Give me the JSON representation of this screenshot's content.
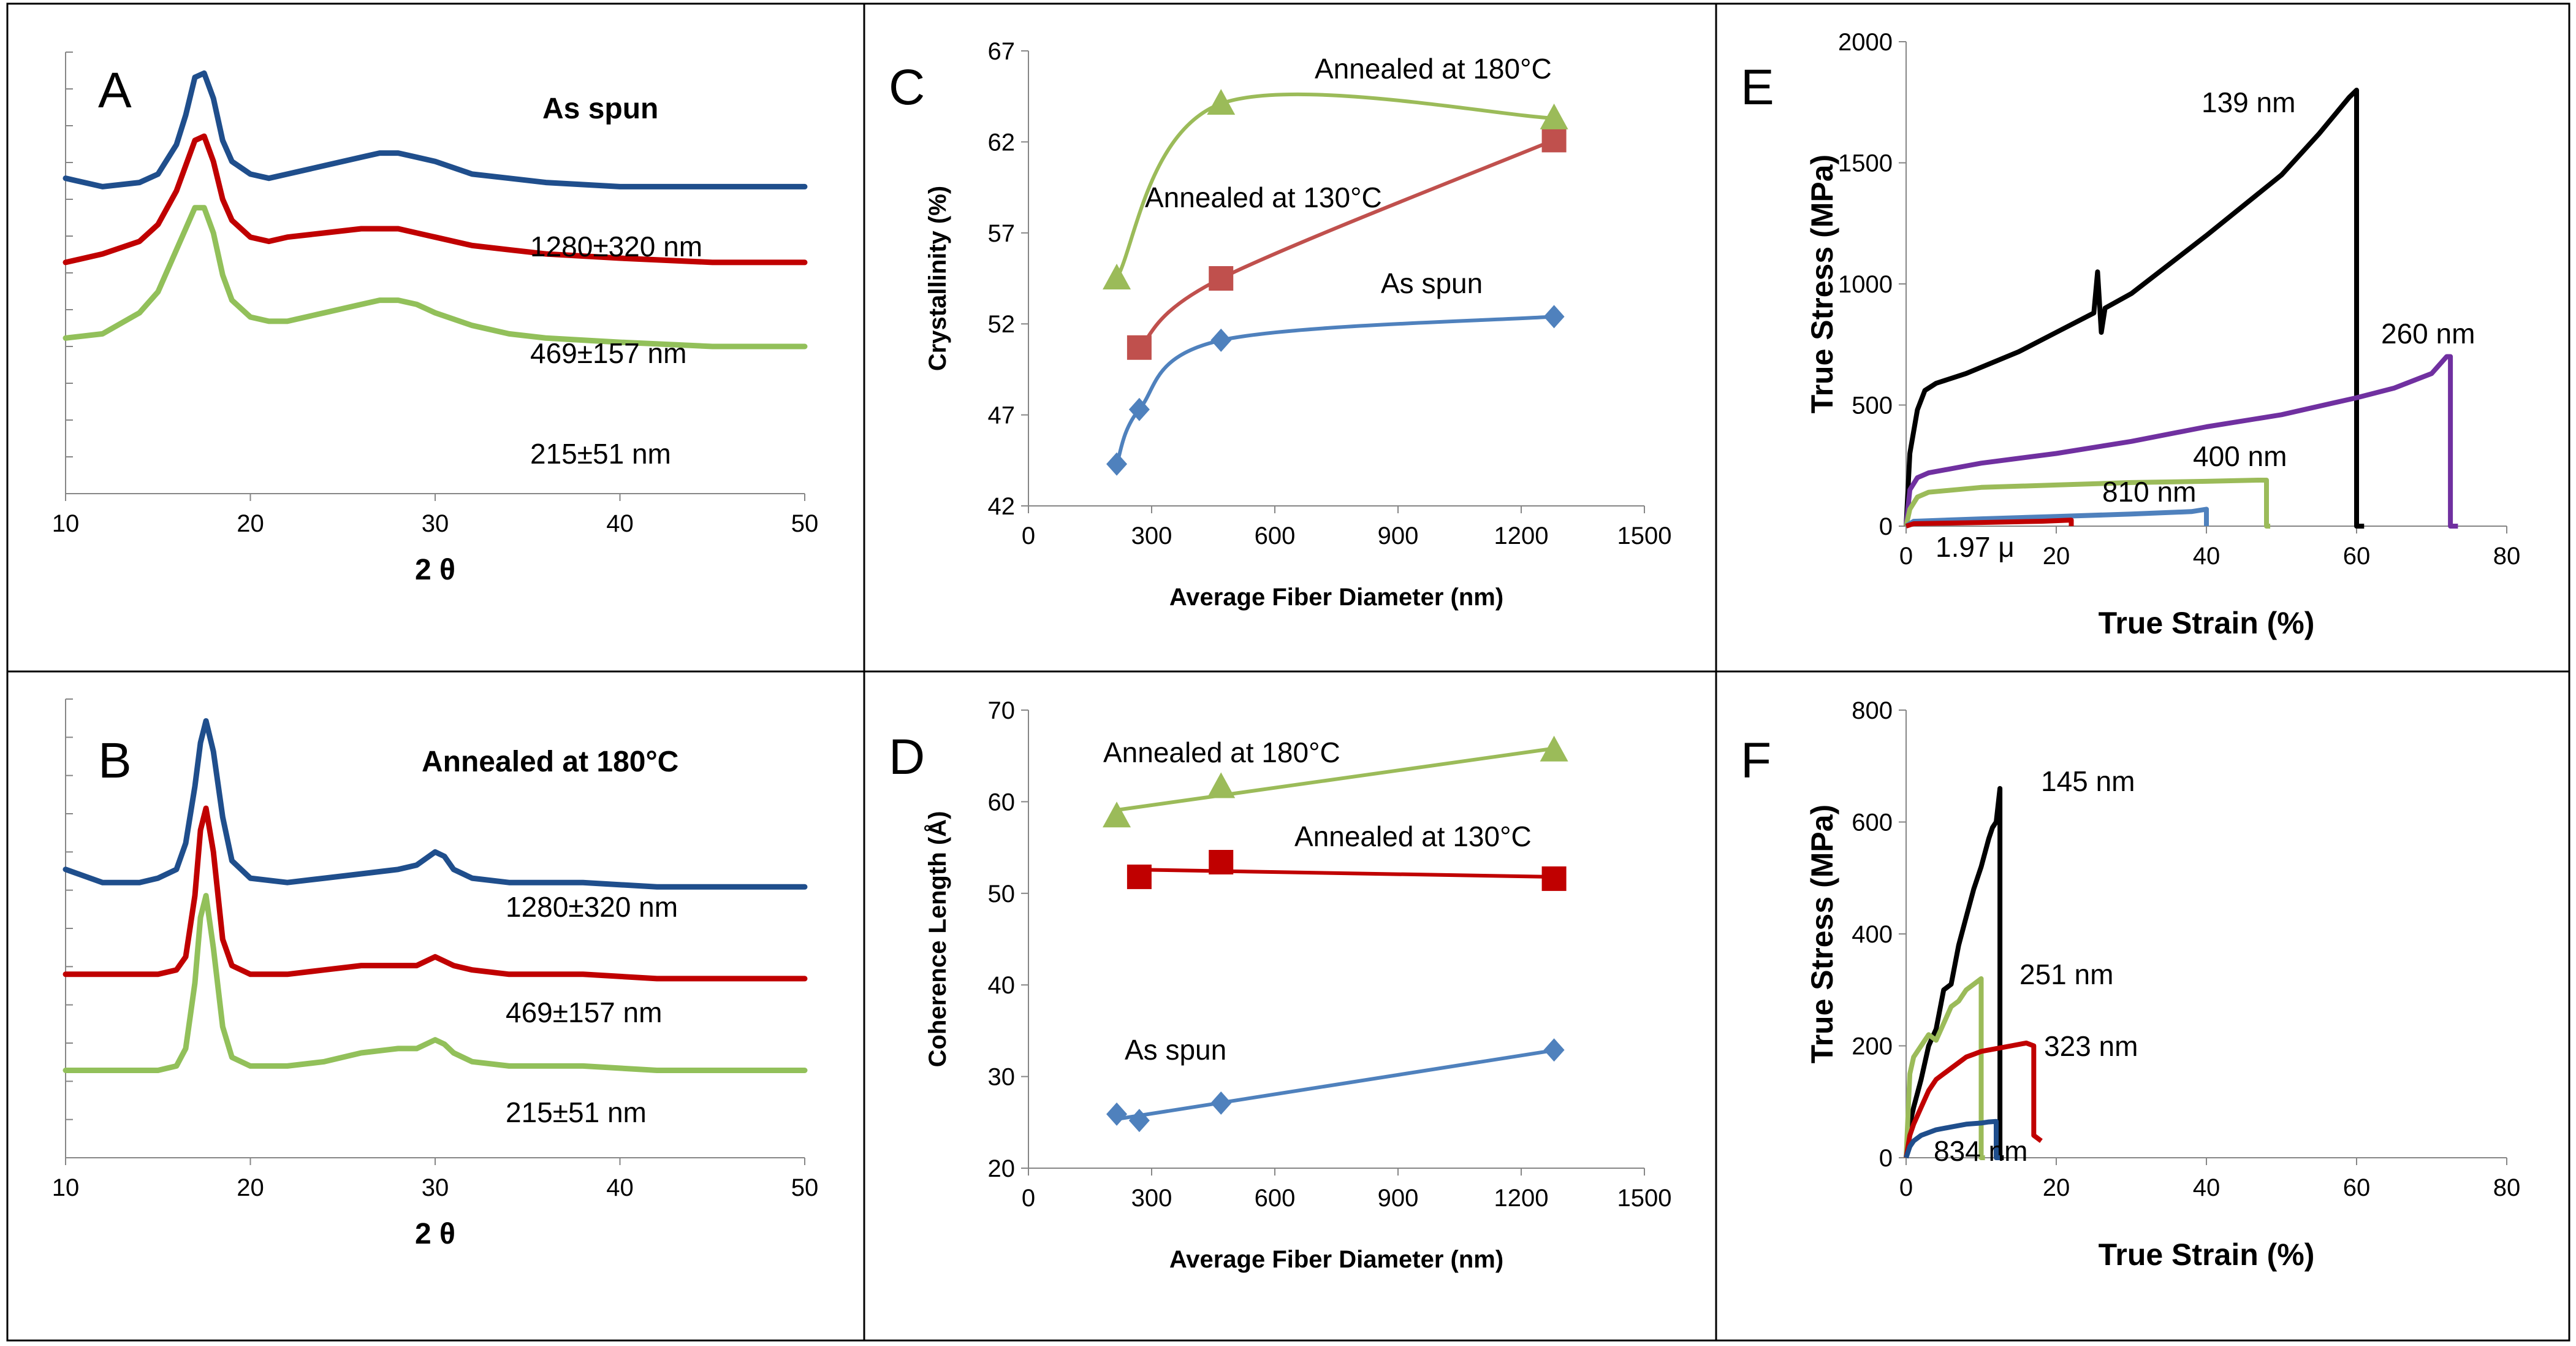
{
  "chart_data": [
    {
      "panel": "A",
      "type": "line",
      "title": "As spun",
      "xlabel": "2 θ",
      "ylabel": "",
      "xlim": [
        10,
        50
      ],
      "xticks": [
        10,
        20,
        30,
        40,
        50
      ],
      "series": [
        {
          "name": "1280±320 nm",
          "color": "#1f4e8c",
          "x": [
            10,
            12,
            14,
            15,
            16,
            16.5,
            17,
            17.5,
            18,
            18.5,
            19,
            20,
            21,
            22,
            24,
            26,
            27,
            28,
            29,
            30,
            32,
            34,
            36,
            40,
            45,
            50
          ],
          "y": [
            0.75,
            0.73,
            0.74,
            0.76,
            0.83,
            0.9,
            0.99,
            1.0,
            0.94,
            0.84,
            0.79,
            0.76,
            0.75,
            0.76,
            0.78,
            0.8,
            0.81,
            0.81,
            0.8,
            0.79,
            0.76,
            0.75,
            0.74,
            0.73,
            0.73,
            0.73
          ]
        },
        {
          "name": "469±157 nm",
          "color": "#c00000",
          "x": [
            10,
            12,
            14,
            15,
            16,
            16.5,
            17,
            17.5,
            18,
            18.5,
            19,
            20,
            21,
            22,
            24,
            26,
            27,
            28,
            29,
            30,
            32,
            34,
            36,
            40,
            45,
            50
          ],
          "y": [
            0.55,
            0.57,
            0.6,
            0.64,
            0.72,
            0.78,
            0.84,
            0.85,
            0.79,
            0.7,
            0.65,
            0.61,
            0.6,
            0.61,
            0.62,
            0.63,
            0.63,
            0.63,
            0.62,
            0.61,
            0.59,
            0.58,
            0.57,
            0.56,
            0.55,
            0.55
          ]
        },
        {
          "name": "215±51 nm",
          "color": "#92c05a",
          "x": [
            10,
            12,
            14,
            15,
            16,
            16.5,
            17,
            17.5,
            18,
            18.5,
            19,
            20,
            21,
            22,
            24,
            26,
            27,
            28,
            29,
            30,
            32,
            34,
            36,
            40,
            45,
            50
          ],
          "y": [
            0.37,
            0.38,
            0.43,
            0.48,
            0.58,
            0.63,
            0.68,
            0.68,
            0.62,
            0.52,
            0.46,
            0.42,
            0.41,
            0.41,
            0.43,
            0.45,
            0.46,
            0.46,
            0.45,
            0.43,
            0.4,
            0.38,
            0.37,
            0.36,
            0.35,
            0.35
          ]
        }
      ],
      "labels": [
        "A",
        "As spun",
        "1280±320 nm",
        "469±157 nm",
        "215±51 nm"
      ]
    },
    {
      "panel": "B",
      "type": "line",
      "title": "Annealed at 180°C",
      "xlabel": "2 θ",
      "ylabel": "",
      "xlim": [
        10,
        50
      ],
      "xticks": [
        10,
        20,
        30,
        40,
        50
      ],
      "series": [
        {
          "name": "1280±320 nm",
          "color": "#1f4e8c",
          "x": [
            10,
            12,
            14,
            15,
            16,
            16.5,
            17,
            17.3,
            17.6,
            18,
            18.5,
            19,
            20,
            22,
            24,
            26,
            28,
            29,
            30,
            30.5,
            31,
            32,
            34,
            38,
            42,
            46,
            50
          ],
          "y": [
            0.66,
            0.63,
            0.63,
            0.64,
            0.66,
            0.72,
            0.85,
            0.95,
            1.0,
            0.93,
            0.78,
            0.68,
            0.64,
            0.63,
            0.64,
            0.65,
            0.66,
            0.67,
            0.7,
            0.69,
            0.66,
            0.64,
            0.63,
            0.63,
            0.62,
            0.62,
            0.62
          ]
        },
        {
          "name": "469±157 nm",
          "color": "#c00000",
          "x": [
            10,
            12,
            14,
            15,
            16,
            16.5,
            17,
            17.3,
            17.6,
            18,
            18.5,
            19,
            20,
            22,
            24,
            26,
            28,
            29,
            30,
            30.5,
            31,
            32,
            34,
            38,
            42,
            46,
            50
          ],
          "y": [
            0.42,
            0.42,
            0.42,
            0.42,
            0.43,
            0.46,
            0.6,
            0.75,
            0.8,
            0.7,
            0.5,
            0.44,
            0.42,
            0.42,
            0.43,
            0.44,
            0.44,
            0.44,
            0.46,
            0.45,
            0.44,
            0.43,
            0.42,
            0.42,
            0.41,
            0.41,
            0.41
          ]
        },
        {
          "name": "215±51 nm",
          "color": "#92c05a",
          "x": [
            10,
            12,
            14,
            15,
            16,
            16.5,
            17,
            17.3,
            17.6,
            18,
            18.5,
            19,
            20,
            22,
            24,
            26,
            28,
            29,
            30,
            30.5,
            31,
            32,
            34,
            38,
            42,
            46,
            50
          ],
          "y": [
            0.2,
            0.2,
            0.2,
            0.2,
            0.21,
            0.25,
            0.4,
            0.55,
            0.6,
            0.48,
            0.3,
            0.23,
            0.21,
            0.21,
            0.22,
            0.24,
            0.25,
            0.25,
            0.27,
            0.26,
            0.24,
            0.22,
            0.21,
            0.21,
            0.2,
            0.2,
            0.2
          ]
        }
      ],
      "labels": [
        "B",
        "Annealed at 180°C",
        "1280±320 nm",
        "469±157 nm",
        "215±51 nm"
      ]
    },
    {
      "panel": "C",
      "type": "scatter",
      "title": "",
      "xlabel": "Average Fiber Diameter (nm)",
      "ylabel": "Crystallinity (%)",
      "xlim": [
        0,
        1500
      ],
      "ylim": [
        42,
        67
      ],
      "xticks": [
        0,
        300,
        600,
        900,
        1200,
        1500
      ],
      "yticks": [
        42,
        47,
        52,
        57,
        62,
        67
      ],
      "series": [
        {
          "name": "As spun",
          "color": "#4f81bd",
          "marker": "diamond",
          "x": [
            215,
            270,
            469,
            1280
          ],
          "y": [
            44.3,
            47.3,
            51.1,
            52.4
          ]
        },
        {
          "name": "Annealed at 130°C",
          "color": "#c0504d",
          "marker": "square",
          "x": [
            270,
            469,
            1280
          ],
          "y": [
            50.7,
            54.5,
            62.1
          ]
        },
        {
          "name": "Annealed at 180°C",
          "color": "#9bbb59",
          "marker": "triangle",
          "x": [
            215,
            469,
            1280
          ],
          "y": [
            54.5,
            64.1,
            63.3
          ]
        }
      ],
      "labels": [
        "C",
        "Annealed at 180°C",
        "Annealed at 130°C",
        "As spun"
      ]
    },
    {
      "panel": "D",
      "type": "scatter",
      "title": "",
      "xlabel": "Average Fiber Diameter (nm)",
      "ylabel": "Coherence Length (Å)",
      "xlim": [
        0,
        1500
      ],
      "ylim": [
        20,
        70
      ],
      "xticks": [
        0,
        300,
        600,
        900,
        1200,
        1500
      ],
      "yticks": [
        20,
        30,
        40,
        50,
        60,
        70
      ],
      "series": [
        {
          "name": "As spun",
          "color": "#4f81bd",
          "marker": "diamond",
          "x": [
            215,
            270,
            469,
            1280
          ],
          "y": [
            25.9,
            25.2,
            27.1,
            32.9
          ]
        },
        {
          "name": "Annealed at 130°C",
          "color": "#c00000",
          "marker": "square",
          "x": [
            270,
            469,
            1280
          ],
          "y": [
            51.8,
            53.4,
            51.6
          ]
        },
        {
          "name": "Annealed at 180°C",
          "color": "#9bbb59",
          "marker": "triangle",
          "x": [
            215,
            469,
            1280
          ],
          "y": [
            58.4,
            61.6,
            65.6
          ]
        }
      ],
      "labels": [
        "D",
        "Annealed at 180°C",
        "Annealed at 130°C",
        "As spun"
      ]
    },
    {
      "panel": "E",
      "type": "line",
      "title": "",
      "xlabel": "True Strain (%)",
      "ylabel": "True Stress (MPa)",
      "xlim": [
        0,
        80
      ],
      "ylim": [
        0,
        2000
      ],
      "xticks": [
        0,
        20,
        40,
        60,
        80
      ],
      "yticks": [
        0,
        500,
        1000,
        1500,
        2000
      ],
      "series": [
        {
          "name": "139 nm",
          "color": "#000000",
          "x": [
            0,
            0.5,
            1.5,
            2.5,
            4,
            8,
            15,
            20,
            25,
            25.5,
            26,
            26.5,
            30,
            40,
            50,
            55,
            59,
            60,
            60,
            61
          ],
          "y": [
            0,
            300,
            480,
            560,
            590,
            630,
            720,
            800,
            880,
            1050,
            800,
            900,
            960,
            1200,
            1450,
            1620,
            1770,
            1800,
            0,
            0
          ]
        },
        {
          "name": "260 nm",
          "color": "#7030a0",
          "x": [
            0,
            0.5,
            1.5,
            3,
            10,
            20,
            30,
            40,
            50,
            60,
            65,
            70,
            72,
            72.5,
            72.5,
            73.5
          ],
          "y": [
            0,
            150,
            200,
            220,
            260,
            300,
            350,
            410,
            460,
            530,
            570,
            630,
            700,
            700,
            0,
            0
          ]
        },
        {
          "name": "400 nm",
          "color": "#9bbb59",
          "x": [
            0,
            0.5,
            1.5,
            3,
            10,
            20,
            30,
            40,
            47,
            48,
            48,
            48.5
          ],
          "y": [
            0,
            70,
            120,
            140,
            160,
            170,
            180,
            185,
            190,
            190,
            0,
            0
          ]
        },
        {
          "name": "810 nm",
          "color": "#4f81bd",
          "x": [
            0,
            1,
            10,
            20,
            30,
            38,
            40,
            40
          ],
          "y": [
            0,
            20,
            30,
            40,
            50,
            60,
            70,
            0
          ]
        },
        {
          "name": "1.97 μ",
          "color": "#c00000",
          "x": [
            0,
            1,
            10,
            18,
            22,
            22
          ],
          "y": [
            0,
            10,
            15,
            20,
            25,
            0
          ]
        }
      ],
      "labels": [
        "E",
        "139 nm",
        "260 nm",
        "400 nm",
        "810 nm",
        "1.97 μ"
      ]
    },
    {
      "panel": "F",
      "type": "line",
      "title": "",
      "xlabel": "True Strain (%)",
      "ylabel": "True Stress (MPa)",
      "xlim": [
        0,
        80
      ],
      "ylim": [
        0,
        800
      ],
      "xticks": [
        0,
        20,
        40,
        60,
        80
      ],
      "yticks": [
        0,
        200,
        400,
        600,
        800
      ],
      "series": [
        {
          "name": "145 nm",
          "color": "#000000",
          "x": [
            0,
            0.5,
            1,
            2,
            3,
            4,
            5,
            6,
            7,
            8,
            9,
            10,
            11,
            11.5,
            12,
            12.5,
            12.5,
            13
          ],
          "y": [
            0,
            60,
            90,
            140,
            200,
            230,
            300,
            310,
            380,
            430,
            480,
            520,
            570,
            590,
            600,
            660,
            0,
            0
          ]
        },
        {
          "name": "251 nm",
          "color": "#9bbb59",
          "x": [
            0,
            0.5,
            1,
            2,
            3,
            4,
            5,
            6,
            7,
            8,
            9,
            10,
            10,
            10.5
          ],
          "y": [
            0,
            150,
            180,
            200,
            220,
            210,
            240,
            270,
            280,
            300,
            310,
            320,
            0,
            0
          ]
        },
        {
          "name": "323 nm",
          "color": "#c00000",
          "x": [
            0,
            0.5,
            1,
            2,
            3,
            4,
            5,
            6,
            7,
            8,
            9,
            10,
            12,
            14,
            16,
            17,
            17,
            17.5,
            18
          ],
          "y": [
            0,
            40,
            60,
            90,
            120,
            140,
            150,
            160,
            170,
            180,
            185,
            190,
            195,
            200,
            205,
            200,
            40,
            35,
            30
          ]
        },
        {
          "name": "834 nm",
          "color": "#1f4e8c",
          "x": [
            0,
            0.5,
            1,
            2,
            4,
            6,
            8,
            10,
            11,
            12,
            12,
            12.5
          ],
          "y": [
            0,
            20,
            30,
            40,
            50,
            55,
            60,
            62,
            64,
            65,
            0,
            0
          ]
        }
      ],
      "labels": [
        "F",
        "145 nm",
        "251 nm",
        "323 nm",
        "834 nm"
      ]
    }
  ]
}
